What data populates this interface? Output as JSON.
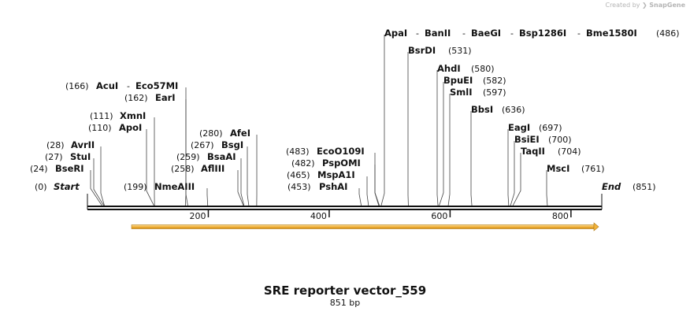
{
  "branding": {
    "created_by": "Created by",
    "brand": "SnapGene"
  },
  "sequence": {
    "name": "SRE reporter vector_559",
    "length_label": "851 bp",
    "length": 851
  },
  "ends": {
    "start_label": "Start",
    "start_pos": "(0)",
    "end_label": "End",
    "end_pos": "(851)"
  },
  "axis": {
    "ticks": [
      200,
      400,
      600,
      800
    ]
  },
  "feature": {
    "start": 73,
    "end": 851,
    "color": "#f2b33d",
    "direction": "forward"
  },
  "sites": [
    {
      "id": "bseri",
      "name": "BseRI",
      "pos": 24,
      "label": "(24)"
    },
    {
      "id": "stui",
      "name": "StuI",
      "pos": 27,
      "label": "(27)"
    },
    {
      "id": "avrii",
      "name": "AvrII",
      "pos": 28,
      "label": "(28)"
    },
    {
      "id": "apoi",
      "name": "ApoI",
      "pos": 110,
      "label": "(110)"
    },
    {
      "id": "xmni",
      "name": "XmnI",
      "pos": 111,
      "label": "(111)"
    },
    {
      "id": "eari",
      "name": "EarI",
      "pos": 162,
      "label": "(162)"
    },
    {
      "id": "acui",
      "name": "AcuI",
      "pos": 166,
      "label": "(166)"
    },
    {
      "id": "eco57mi",
      "name": "Eco57MI",
      "pos": 166,
      "label": ""
    },
    {
      "id": "nmeaiii",
      "name": "NmeAIII",
      "pos": 199,
      "label": "(199)"
    },
    {
      "id": "afliii",
      "name": "AflIII",
      "pos": 258,
      "label": "(258)"
    },
    {
      "id": "bsaai",
      "name": "BsaAI",
      "pos": 259,
      "label": "(259)"
    },
    {
      "id": "bsgi",
      "name": "BsgI",
      "pos": 267,
      "label": "(267)"
    },
    {
      "id": "afei",
      "name": "AfeI",
      "pos": 280,
      "label": "(280)"
    },
    {
      "id": "pshai",
      "name": "PshAI",
      "pos": 453,
      "label": "(453)"
    },
    {
      "id": "mspa1i",
      "name": "MspA1I",
      "pos": 465,
      "label": "(465)"
    },
    {
      "id": "pspomi",
      "name": "PspOMI",
      "pos": 482,
      "label": "(482)"
    },
    {
      "id": "eco0109i",
      "name": "EcoO109I",
      "pos": 483,
      "label": "(483)"
    },
    {
      "id": "apai",
      "name": "ApaI",
      "pos": 486,
      "label": ""
    },
    {
      "id": "banii",
      "name": "BanII",
      "pos": 486,
      "label": ""
    },
    {
      "id": "baegi",
      "name": "BaeGI",
      "pos": 486,
      "label": ""
    },
    {
      "id": "bsp1286i",
      "name": "Bsp1286I",
      "pos": 486,
      "label": ""
    },
    {
      "id": "bme1580i",
      "name": "Bme1580I",
      "pos": 486,
      "label": "(486)"
    },
    {
      "id": "bsrdi",
      "name": "BsrDI",
      "pos": 531,
      "label": "(531)"
    },
    {
      "id": "ahdi",
      "name": "AhdI",
      "pos": 580,
      "label": "(580)"
    },
    {
      "id": "bpuei",
      "name": "BpuEI",
      "pos": 582,
      "label": "(582)"
    },
    {
      "id": "smli",
      "name": "SmlI",
      "pos": 597,
      "label": "(597)"
    },
    {
      "id": "bbsi",
      "name": "BbsI",
      "pos": 636,
      "label": "(636)"
    },
    {
      "id": "eagi",
      "name": "EagI",
      "pos": 697,
      "label": "(697)"
    },
    {
      "id": "bsiei",
      "name": "BsiEI",
      "pos": 700,
      "label": "(700)"
    },
    {
      "id": "taqii",
      "name": "TaqII",
      "pos": 704,
      "label": "(704)"
    },
    {
      "id": "msci",
      "name": "MscI",
      "pos": 761,
      "label": "(761)"
    }
  ]
}
